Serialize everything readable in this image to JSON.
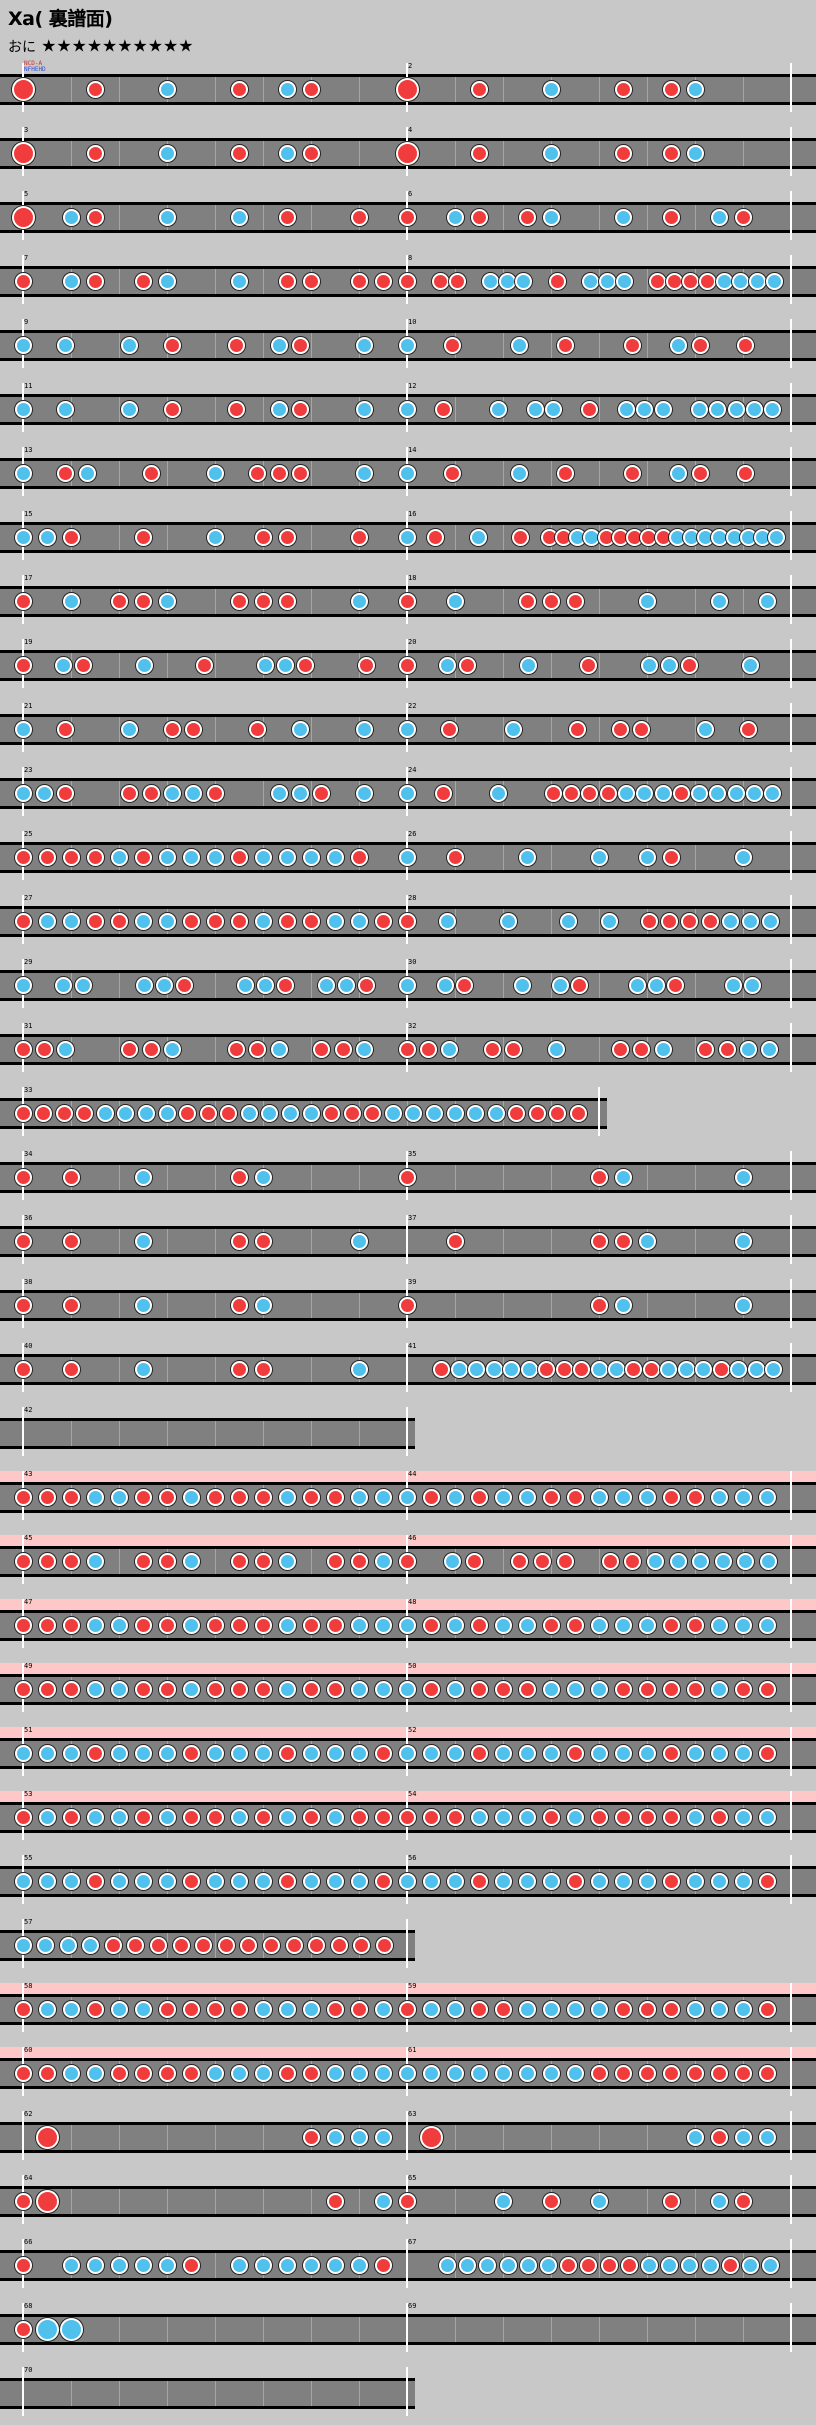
{
  "chart": {
    "title": "Xa( 裏譜面)",
    "course_label": "おに",
    "difficulty_stars": "★★★★★★★★★★",
    "stamp_line1": "NCD-A",
    "stamp_line2": "NFHEHD",
    "colors": {
      "background": "#c8c8c8",
      "lane": "#808080",
      "gogo_band": "#ffc8c8",
      "don": "#f03c3c",
      "ka": "#50c0ec",
      "barline": "#ffffff"
    }
  },
  "rows": [
    {
      "gogo": false,
      "measures": [
        {
          "num": "",
          "slots": 16,
          "notes": "D..r..k..r.kr..."
        },
        {
          "num": "2",
          "slots": 16,
          "notes": "D..r..k..r.rk..."
        }
      ]
    },
    {
      "gogo": false,
      "measures": [
        {
          "num": "3",
          "slots": 16,
          "notes": "D..r..k..r.kr..."
        },
        {
          "num": "4",
          "slots": 16,
          "notes": "D..r..k..r.rk..."
        }
      ]
    },
    {
      "gogo": false,
      "measures": [
        {
          "num": "5",
          "slots": 16,
          "notes": "D.kr..k..k.r..r."
        },
        {
          "num": "6",
          "slots": 16,
          "notes": "r.kr.rk..k.r.kr."
        }
      ]
    },
    {
      "gogo": false,
      "measures": [
        {
          "num": "7",
          "slots": 16,
          "notes": "r.kr.rk..k.rr.rr"
        },
        {
          "num": "8",
          "slots": 16,
          "notes": "r.rr.kkk.r.kkk.rrrrkkkk"
        }
      ]
    },
    {
      "gogo": false,
      "measures": [
        {
          "num": "9",
          "slots": 16,
          "notes": "k.k..k.r..r.kr..k."
        },
        {
          "num": "10",
          "slots": 16,
          "notes": "k.r..k.r..r.kr.r."
        }
      ]
    },
    {
      "gogo": false,
      "measures": [
        {
          "num": "11",
          "slots": 16,
          "notes": "k.k..k.r..r.kr..k."
        },
        {
          "num": "12",
          "slots": 16,
          "notes": "k.r..k.kk.r.kkk.kkkkk"
        }
      ]
    },
    {
      "gogo": false,
      "measures": [
        {
          "num": "13",
          "slots": 16,
          "notes": "k.rk..r..k.rrr..k."
        },
        {
          "num": "14",
          "slots": 16,
          "notes": "k.r..k.r..r.kr.r."
        }
      ]
    },
    {
      "gogo": false,
      "measures": [
        {
          "num": "15",
          "slots": 16,
          "notes": "kkr..r..k.rr..r."
        },
        {
          "num": "16",
          "slots": 16,
          "notes": "k.r..k..r.rrkkrrrrrkkkkkkkk"
        }
      ]
    },
    {
      "gogo": false,
      "measures": [
        {
          "num": "17",
          "slots": 16,
          "notes": "r.k.rrk..rrr..k."
        },
        {
          "num": "18",
          "slots": 16,
          "notes": "r.k..rrr..k..k.k"
        }
      ]
    },
    {
      "gogo": false,
      "measures": [
        {
          "num": "19",
          "slots": 16,
          "notes": "r.kr..k..r..kkr..r."
        },
        {
          "num": "20",
          "slots": 16,
          "notes": "r.kr..k..r..kkr..k."
        }
      ]
    },
    {
      "gogo": false,
      "measures": [
        {
          "num": "21",
          "slots": 16,
          "notes": "k.r..k.rr..r.k..k."
        },
        {
          "num": "22",
          "slots": 16,
          "notes": "k.r..k..r.rr..k.r."
        }
      ]
    },
    {
      "gogo": false,
      "measures": [
        {
          "num": "23",
          "slots": 16,
          "notes": "kkr..rrkkr..kkr.k."
        },
        {
          "num": "24",
          "slots": 16,
          "notes": "k.r..k..rrrrkkkrkkkkk"
        }
      ]
    },
    {
      "gogo": false,
      "measures": [
        {
          "num": "25",
          "slots": 16,
          "notes": "rrrrkrkkkrkkkkr."
        },
        {
          "num": "26",
          "slots": 16,
          "notes": "k.r..k..k.kr..k."
        }
      ]
    },
    {
      "gogo": false,
      "measures": [
        {
          "num": "27",
          "slots": 16,
          "notes": "rkkrrkkrrrkrrkkr"
        },
        {
          "num": "28",
          "slots": 16,
          "notes": "r.k..k..k.k.rrrrkkk"
        }
      ]
    },
    {
      "gogo": false,
      "measures": [
        {
          "num": "29",
          "slots": 16,
          "notes": "k.kk..kkr..kkr.kkr."
        },
        {
          "num": "30",
          "slots": 16,
          "notes": "k.kr..k.kr..kkr..kk."
        }
      ]
    },
    {
      "gogo": false,
      "measures": [
        {
          "num": "31",
          "slots": 16,
          "notes": "rrk..rrk..rrk.rrk."
        },
        {
          "num": "32",
          "slots": 16,
          "notes": "rrk.rr.k..rrk.rrkk"
        }
      ]
    },
    {
      "gogo": false,
      "measures": [
        {
          "num": "33",
          "slots": 24,
          "notes": "rrrrkkkkrrrkkkkrrrkkkkkkrrrr"
        }
      ]
    },
    {
      "gogo": false,
      "measures": [
        {
          "num": "34",
          "slots": 16,
          "notes": "r.r..k...rk....."
        },
        {
          "num": "35",
          "slots": 16,
          "notes": "r.......rk....k."
        }
      ]
    },
    {
      "gogo": false,
      "measures": [
        {
          "num": "36",
          "slots": 16,
          "notes": "r.r..k...rr...k."
        },
        {
          "num": "37",
          "slots": 16,
          "notes": "..r.....rrk...k."
        }
      ]
    },
    {
      "gogo": false,
      "measures": [
        {
          "num": "38",
          "slots": 16,
          "notes": "r.r..k...rk....."
        },
        {
          "num": "39",
          "slots": 16,
          "notes": "r.......rk....k."
        }
      ]
    },
    {
      "gogo": false,
      "measures": [
        {
          "num": "40",
          "slots": 16,
          "notes": "r.r..k...rr...k."
        },
        {
          "num": "41",
          "slots": 16,
          "notes": "..rkkkkkrrrkkrrkkkrkkk"
        }
      ]
    },
    {
      "gogo": false,
      "measures": [
        {
          "num": "42",
          "slots": 16,
          "notes": "................"
        }
      ]
    },
    {
      "gogo": true,
      "measures": [
        {
          "num": "43",
          "slots": 16,
          "notes": "rrrkkrrkrrrkrrkk"
        },
        {
          "num": "44",
          "slots": 16,
          "notes": "krkrkkrrkkkrrkkk"
        }
      ]
    },
    {
      "gogo": true,
      "measures": [
        {
          "num": "45",
          "slots": 16,
          "notes": "rrrk.rrk.rrk.rrk"
        },
        {
          "num": "46",
          "slots": 16,
          "notes": "r.kr.rrr.rrkkkkkk"
        }
      ]
    },
    {
      "gogo": true,
      "measures": [
        {
          "num": "47",
          "slots": 16,
          "notes": "rrrkkrrkrrrkrrkk"
        },
        {
          "num": "48",
          "slots": 16,
          "notes": "krkrkkrrkkkrrkkk"
        }
      ]
    },
    {
      "gogo": true,
      "measures": [
        {
          "num": "49",
          "slots": 16,
          "notes": "rrrkkrrkrrrkrrkk"
        },
        {
          "num": "50",
          "slots": 16,
          "notes": "krkrrrkkkrrrrkrr"
        }
      ]
    },
    {
      "gogo": true,
      "measures": [
        {
          "num": "51",
          "slots": 16,
          "notes": "kkkrkkkrkkkrkkkr"
        },
        {
          "num": "52",
          "slots": 16,
          "notes": "kkkrkkkrkkkrkkkr"
        }
      ]
    },
    {
      "gogo": true,
      "measures": [
        {
          "num": "53",
          "slots": 16,
          "notes": "rkrkkrkrrkrkrkrr"
        },
        {
          "num": "54",
          "slots": 16,
          "notes": "rrrkkkrkrrrrkrkk"
        }
      ]
    },
    {
      "gogo": false,
      "measures": [
        {
          "num": "55",
          "slots": 16,
          "notes": "kkkrkkkrkkkrkkkr"
        },
        {
          "num": "56",
          "slots": 16,
          "notes": "kkkrkkkrkkkrkkkr"
        }
      ]
    },
    {
      "gogo": false,
      "measures": [
        {
          "num": "57",
          "slots": 16,
          "notes": "kkkkrrrrrrrrrrrrr"
        }
      ]
    },
    {
      "gogo": true,
      "measures": [
        {
          "num": "58",
          "slots": 16,
          "notes": "rkkrkkrrrrkkkrrk"
        },
        {
          "num": "59",
          "slots": 16,
          "notes": "rkkrrkkkkrrrkkkr"
        }
      ]
    },
    {
      "gogo": true,
      "measures": [
        {
          "num": "60",
          "slots": 16,
          "notes": "rrkkrrrrkkkrrkkk"
        },
        {
          "num": "61",
          "slots": 16,
          "notes": "kkkkkkkkrrrrrrrr"
        }
      ]
    },
    {
      "gogo": false,
      "measures": [
        {
          "num": "62",
          "slots": 16,
          "notes": ".D..........rkkk"
        },
        {
          "num": "63",
          "slots": 16,
          "notes": ".D..........krkk"
        }
      ]
    },
    {
      "gogo": false,
      "measures": [
        {
          "num": "64",
          "slots": 16,
          "notes": "rD...........r.k"
        },
        {
          "num": "65",
          "slots": 16,
          "notes": "r...k.r.k..r.kr."
        }
      ]
    },
    {
      "gogo": false,
      "measures": [
        {
          "num": "66",
          "slots": 16,
          "notes": "r.kkkkkr.kkkkkkr"
        },
        {
          "num": "67",
          "slots": 16,
          "notes": "..kkkkkkrrrrkkkkrkk"
        }
      ]
    },
    {
      "gogo": false,
      "measures": [
        {
          "num": "68",
          "slots": 16,
          "notes": "rKK............."
        },
        {
          "num": "69",
          "slots": 16,
          "notes": "................"
        }
      ]
    },
    {
      "gogo": false,
      "measures": [
        {
          "num": "70",
          "slots": 16,
          "notes": "................"
        }
      ]
    }
  ]
}
